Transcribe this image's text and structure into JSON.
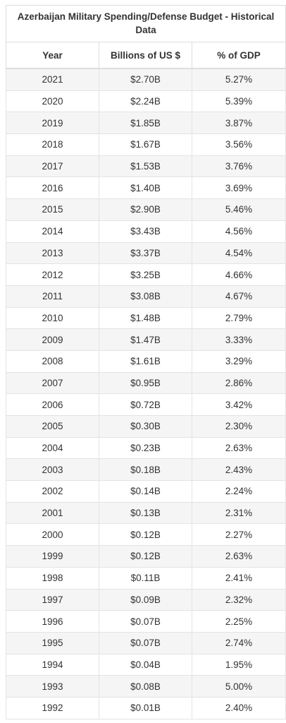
{
  "table": {
    "title": "Azerbaijan Military Spending/Defense Budget - Historical Data",
    "headers": [
      "Year",
      "Billions of US $",
      "% of GDP"
    ],
    "rows": [
      [
        "2021",
        "$2.70B",
        "5.27%"
      ],
      [
        "2020",
        "$2.24B",
        "5.39%"
      ],
      [
        "2019",
        "$1.85B",
        "3.87%"
      ],
      [
        "2018",
        "$1.67B",
        "3.56%"
      ],
      [
        "2017",
        "$1.53B",
        "3.76%"
      ],
      [
        "2016",
        "$1.40B",
        "3.69%"
      ],
      [
        "2015",
        "$2.90B",
        "5.46%"
      ],
      [
        "2014",
        "$3.43B",
        "4.56%"
      ],
      [
        "2013",
        "$3.37B",
        "4.54%"
      ],
      [
        "2012",
        "$3.25B",
        "4.66%"
      ],
      [
        "2011",
        "$3.08B",
        "4.67%"
      ],
      [
        "2010",
        "$1.48B",
        "2.79%"
      ],
      [
        "2009",
        "$1.47B",
        "3.33%"
      ],
      [
        "2008",
        "$1.61B",
        "3.29%"
      ],
      [
        "2007",
        "$0.95B",
        "2.86%"
      ],
      [
        "2006",
        "$0.72B",
        "3.42%"
      ],
      [
        "2005",
        "$0.30B",
        "2.30%"
      ],
      [
        "2004",
        "$0.23B",
        "2.63%"
      ],
      [
        "2003",
        "$0.18B",
        "2.43%"
      ],
      [
        "2002",
        "$0.14B",
        "2.24%"
      ],
      [
        "2001",
        "$0.13B",
        "2.31%"
      ],
      [
        "2000",
        "$0.12B",
        "2.27%"
      ],
      [
        "1999",
        "$0.12B",
        "2.63%"
      ],
      [
        "1998",
        "$0.11B",
        "2.41%"
      ],
      [
        "1997",
        "$0.09B",
        "2.32%"
      ],
      [
        "1996",
        "$0.07B",
        "2.25%"
      ],
      [
        "1995",
        "$0.07B",
        "2.74%"
      ],
      [
        "1994",
        "$0.04B",
        "1.95%"
      ],
      [
        "1993",
        "$0.08B",
        "5.00%"
      ],
      [
        "1992",
        "$0.01B",
        "2.40%"
      ]
    ]
  }
}
